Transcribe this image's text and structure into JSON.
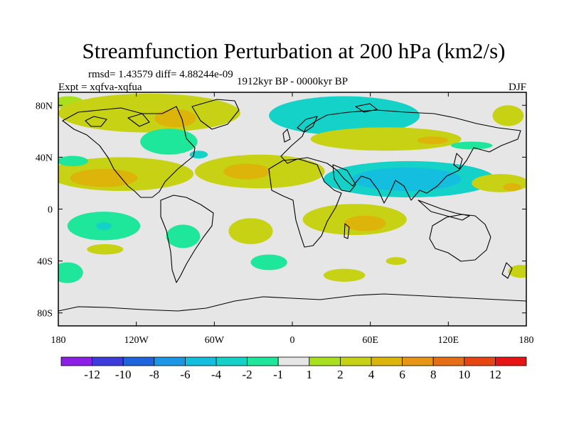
{
  "chart_data": {
    "type": "heatmap",
    "title": "Streamfunction Perturbation at 200 hPa (km2/s)",
    "left_string": "Expt = xqfva-xqfua",
    "center_string": "1912kyr BP - 0000kyr BP",
    "right_string": "DJF",
    "stats_string": "rmsd= 1.43579  diff= 4.88244e-09",
    "x_ticks": [
      {
        "value": -180,
        "label": "180"
      },
      {
        "value": -120,
        "label": "120W"
      },
      {
        "value": -60,
        "label": "60W"
      },
      {
        "value": 0,
        "label": "0"
      },
      {
        "value": 60,
        "label": "60E"
      },
      {
        "value": 120,
        "label": "120E"
      },
      {
        "value": 180,
        "label": "180"
      }
    ],
    "y_ticks": [
      {
        "value": 80,
        "label": "80N"
      },
      {
        "value": 40,
        "label": "40N"
      },
      {
        "value": 0,
        "label": "0"
      },
      {
        "value": -40,
        "label": "40S"
      },
      {
        "value": -80,
        "label": "80S"
      }
    ],
    "xlim": [
      -180,
      180
    ],
    "ylim": [
      -90,
      90
    ],
    "colorbar": {
      "levels": [
        -12,
        -10,
        -8,
        -6,
        -4,
        -2,
        -1,
        1,
        2,
        4,
        6,
        8,
        10,
        12
      ],
      "labels": [
        "-12",
        "-10",
        "-8",
        "-6",
        "-4",
        "-2",
        "-1",
        "1",
        "2",
        "4",
        "6",
        "8",
        "10",
        "12"
      ],
      "colors": [
        "#8c1ee6",
        "#3c3cdc",
        "#1e64dc",
        "#1e96e6",
        "#14bede",
        "#14d2c8",
        "#1ee69a",
        "#e6e6e6",
        "#a8e01e",
        "#c8d214",
        "#dcb40a",
        "#e69614",
        "#e66e14",
        "#e64614",
        "#e61414"
      ]
    },
    "anomaly_blobs": [
      {
        "lon": -172,
        "lat": 82,
        "rlon": 12,
        "rlat": 5,
        "value": 1.5
      },
      {
        "lon": -110,
        "lat": 74,
        "rlon": 70,
        "rlat": 15,
        "value": 2.3
      },
      {
        "lon": -90,
        "lat": 70,
        "rlon": 16,
        "rlat": 7,
        "value": 4.5
      },
      {
        "lon": -112,
        "lat": 78,
        "rlon": 7,
        "rlat": 3,
        "value": 3.2
      },
      {
        "lon": -165,
        "lat": 77,
        "rlon": 8,
        "rlat": 3,
        "value": 3.2
      },
      {
        "lon": -95,
        "lat": 52,
        "rlon": 22,
        "rlat": 10,
        "value": -1.8
      },
      {
        "lon": -72,
        "lat": 42,
        "rlon": 7,
        "rlat": 3,
        "value": -3.0
      },
      {
        "lon": -132,
        "lat": 27,
        "rlon": 56,
        "rlat": 13,
        "value": 2.3
      },
      {
        "lon": -25,
        "lat": 29,
        "rlon": 50,
        "rlat": 13,
        "value": 2.3
      },
      {
        "lon": -145,
        "lat": 24,
        "rlon": 26,
        "rlat": 7,
        "value": 4.5
      },
      {
        "lon": -35,
        "lat": 29,
        "rlon": 18,
        "rlat": 6,
        "value": 4.5
      },
      {
        "lon": -169,
        "lat": 37,
        "rlon": 12,
        "rlat": 4,
        "value": -1.5
      },
      {
        "lon": 40,
        "lat": 72,
        "rlon": 58,
        "rlat": 15,
        "value": -2.5
      },
      {
        "lon": 43,
        "lat": 77,
        "rlon": 26,
        "rlat": 6,
        "value": -3.5
      },
      {
        "lon": 72,
        "lat": 54,
        "rlon": 58,
        "rlat": 9,
        "value": 2.3
      },
      {
        "lon": 108,
        "lat": 53,
        "rlon": 12,
        "rlat": 3,
        "value": 4.5
      },
      {
        "lon": 138,
        "lat": 49,
        "rlon": 16,
        "rlat": 3,
        "value": -1.5
      },
      {
        "lon": 166,
        "lat": 72,
        "rlon": 12,
        "rlat": 8,
        "value": 2.3
      },
      {
        "lon": 90,
        "lat": 23,
        "rlon": 66,
        "rlat": 14,
        "value": -2.5
      },
      {
        "lon": 88,
        "lat": 23,
        "rlon": 42,
        "rlat": 9,
        "value": -4.5
      },
      {
        "lon": 160,
        "lat": 20,
        "rlon": 22,
        "rlat": 7,
        "value": 2.3
      },
      {
        "lon": 169,
        "lat": 17,
        "rlon": 7,
        "rlat": 3,
        "value": 4.5
      },
      {
        "lon": 48,
        "lat": -8,
        "rlon": 40,
        "rlat": 12,
        "value": 2.3
      },
      {
        "lon": 56,
        "lat": -11,
        "rlon": 16,
        "rlat": 6,
        "value": 4.5
      },
      {
        "lon": -145,
        "lat": -13,
        "rlon": 28,
        "rlat": 11,
        "value": -2.0
      },
      {
        "lon": -145,
        "lat": -13,
        "rlon": 6,
        "rlat": 3,
        "value": -4.0
      },
      {
        "lon": -84,
        "lat": -21,
        "rlon": 13,
        "rlat": 9,
        "value": -1.5
      },
      {
        "lon": -32,
        "lat": -17,
        "rlon": 17,
        "rlat": 10,
        "value": 2.3
      },
      {
        "lon": -144,
        "lat": -31,
        "rlon": 14,
        "rlat": 4,
        "value": 2.3
      },
      {
        "lon": -173,
        "lat": -49,
        "rlon": 12,
        "rlat": 8,
        "value": -1.5
      },
      {
        "lon": -18,
        "lat": -41,
        "rlon": 14,
        "rlat": 6,
        "value": -1.5
      },
      {
        "lon": 40,
        "lat": -51,
        "rlon": 16,
        "rlat": 5,
        "value": 2.3
      },
      {
        "lon": 80,
        "lat": -40,
        "rlon": 8,
        "rlat": 3,
        "value": 2.3
      },
      {
        "lon": 176,
        "lat": -48,
        "rlon": 10,
        "rlat": 5,
        "value": 2.3
      }
    ]
  }
}
